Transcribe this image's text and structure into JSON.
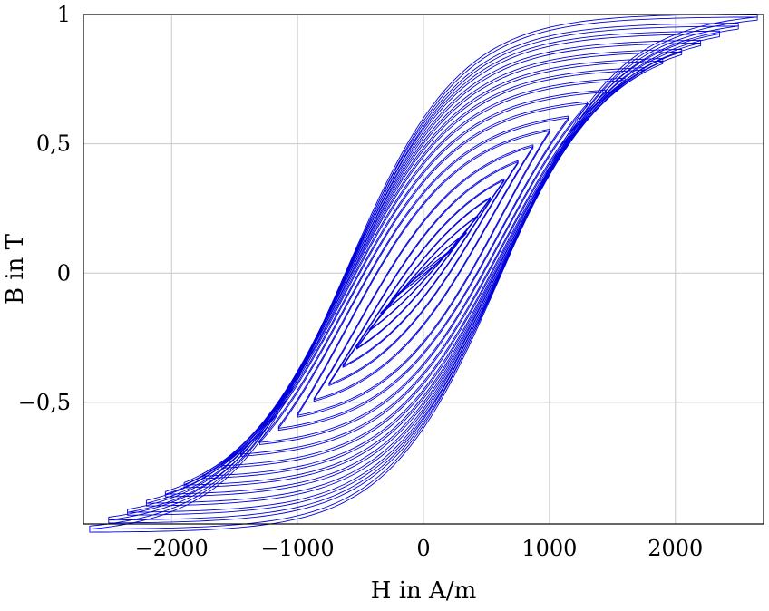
{
  "chart_data": {
    "type": "line",
    "title": "",
    "xlabel": "H in A/m",
    "ylabel": "B in T",
    "xlim": [
      -2700,
      2700
    ],
    "ylim": [
      -0.97,
      1.0
    ],
    "xticks": [
      -2000,
      -1000,
      0,
      1000,
      2000
    ],
    "xtick_labels": [
      "−2000",
      "−1000",
      "0",
      "1000",
      "2000"
    ],
    "yticks": [
      -0.5,
      0,
      0.5,
      1
    ],
    "ytick_labels": [
      "−0,5",
      "0",
      "0,5",
      "1"
    ],
    "grid": true,
    "legend": "none",
    "line_color": "#0000dd",
    "description_of_series": "nested hysteresis loops (B vs H)",
    "series": [
      {
        "hmax": 2650,
        "bmax": 0.99
      },
      {
        "hmax": 2500,
        "bmax": 0.955
      },
      {
        "hmax": 2350,
        "bmax": 0.925
      },
      {
        "hmax": 2200,
        "bmax": 0.89
      },
      {
        "hmax": 2050,
        "bmax": 0.855
      },
      {
        "hmax": 1900,
        "bmax": 0.82
      },
      {
        "hmax": 1750,
        "bmax": 0.785
      },
      {
        "hmax": 1600,
        "bmax": 0.745
      },
      {
        "hmax": 1450,
        "bmax": 0.7
      },
      {
        "hmax": 1300,
        "bmax": 0.655
      },
      {
        "hmax": 1150,
        "bmax": 0.6
      },
      {
        "hmax": 1000,
        "bmax": 0.55
      },
      {
        "hmax": 870,
        "bmax": 0.49
      },
      {
        "hmax": 750,
        "bmax": 0.43
      },
      {
        "hmax": 640,
        "bmax": 0.36
      },
      {
        "hmax": 530,
        "bmax": 0.29
      },
      {
        "hmax": 430,
        "bmax": 0.22
      },
      {
        "hmax": 340,
        "bmax": 0.155
      },
      {
        "hmax": 250,
        "bmax": 0.1
      }
    ]
  }
}
